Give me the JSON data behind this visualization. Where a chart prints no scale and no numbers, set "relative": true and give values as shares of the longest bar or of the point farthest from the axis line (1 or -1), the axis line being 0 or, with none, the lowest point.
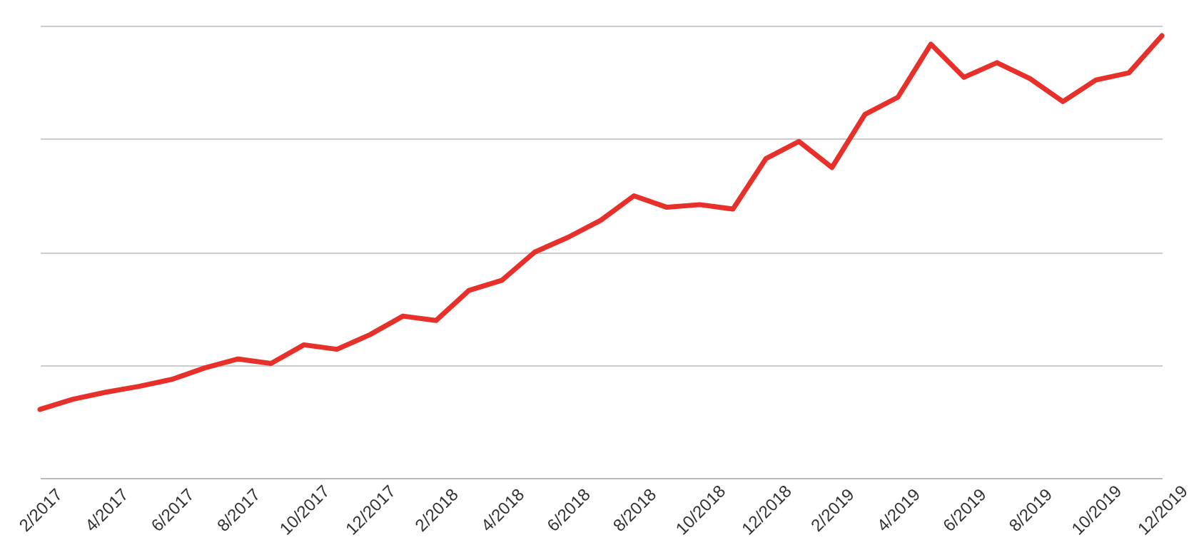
{
  "chart_data": {
    "type": "line",
    "relative": true,
    "grid": "y",
    "color": "#e8302a",
    "categories": [
      "2/2017",
      null,
      "4/2017",
      null,
      "6/2017",
      null,
      "8/2017",
      null,
      "10/2017",
      null,
      "12/2017",
      null,
      "2/2018",
      null,
      "4/2018",
      null,
      "6/2018",
      null,
      "8/2018",
      null,
      "10/2018",
      null,
      "12/2018",
      null,
      "2/2019",
      null,
      "4/2019",
      null,
      "6/2019",
      null,
      "8/2019",
      null,
      "10/2019",
      null,
      "12/2019"
    ],
    "values": [
      0.155,
      0.178,
      0.194,
      0.207,
      0.223,
      0.249,
      0.269,
      0.259,
      0.301,
      0.291,
      0.324,
      0.366,
      0.356,
      0.424,
      0.447,
      0.511,
      0.544,
      0.583,
      0.638,
      0.612,
      0.618,
      0.608,
      0.722,
      0.761,
      0.702,
      0.822,
      0.861,
      0.981,
      0.906,
      0.939,
      0.903,
      0.851,
      0.9,
      0.916,
      1
    ]
  }
}
